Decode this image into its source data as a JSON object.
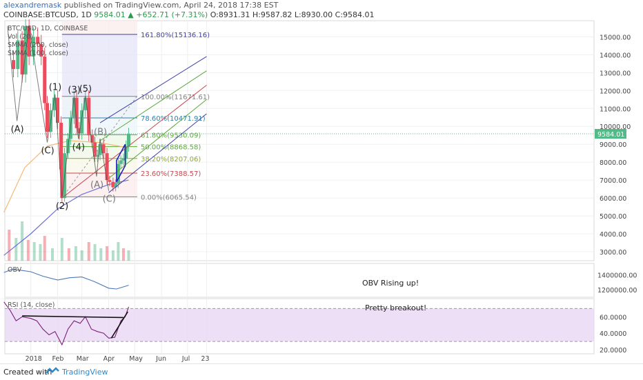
{
  "header": {
    "author": "alexandremask",
    "published": "published on TradingView.com, April 24, 2018 17:38 EST",
    "symbol_line": "COINBASE:BTCUSD, 1D",
    "last": "9584.01",
    "change": "▲ +652.71 (+7.31%)",
    "ohlc": "O:8931.31 H:9587.82 L:8930.00 C:9584.01"
  },
  "legend": {
    "symbol": "BTC/USD, 1D, COINBASE",
    "vol": "Vol (20)",
    "smma200": "SMMA (200, close)",
    "smma100": "SMMA (100, close)"
  },
  "footer": {
    "created_with": "Created with",
    "brand": "TradingView"
  },
  "colors": {
    "up_candle": "#53b987",
    "down_candle": "#eb4d5c",
    "smma200": "#6e6ed8",
    "smma100": "#f5b878",
    "fib_blue": "#3e3ea8",
    "fib_green": "#5aa839",
    "fib_red": "#c8484f",
    "obv": "#4a78b8",
    "rsi": "#7b1f7b",
    "rsi_band": "#e9d8f4"
  },
  "chart_data": [
    {
      "type": "candlestick",
      "title": "BTC/USD, 1D, COINBASE",
      "price_ylim": [
        2500,
        15900
      ],
      "price_ticks": [
        "15000.00",
        "14000.00",
        "13000.00",
        "12000.00",
        "11000.00",
        "10000.00",
        "9000.00",
        "8000.00",
        "7000.00",
        "6000.00",
        "5000.00",
        "4000.00",
        "3000.00"
      ],
      "last_price_label": "9584.01",
      "x_ticks": [
        "2018",
        "Feb",
        "Mar",
        "Apr",
        "May",
        "Jun",
        "Jul",
        "23"
      ],
      "close_series": [
        {
          "date": "2017-12-07",
          "close": 13700
        },
        {
          "date": "2017-12-12",
          "close": 13200
        },
        {
          "date": "2017-12-17",
          "close": 14800
        },
        {
          "date": "2017-12-22",
          "close": 12900
        },
        {
          "date": "2017-12-26",
          "close": 15600
        },
        {
          "date": "2017-12-30",
          "close": 13900
        },
        {
          "date": "2018-01-04",
          "close": 15000
        },
        {
          "date": "2018-01-09",
          "close": 14600
        },
        {
          "date": "2018-01-13",
          "close": 13900
        },
        {
          "date": "2018-01-17",
          "close": 11300
        },
        {
          "date": "2018-01-20",
          "close": 9700
        },
        {
          "date": "2018-01-24",
          "close": 10900
        },
        {
          "date": "2018-01-28",
          "close": 11600
        },
        {
          "date": "2018-02-01",
          "close": 10200
        },
        {
          "date": "2018-02-05",
          "close": 7600
        },
        {
          "date": "2018-02-06",
          "close": 6000
        },
        {
          "date": "2018-02-09",
          "close": 8500
        },
        {
          "date": "2018-02-13",
          "close": 9300
        },
        {
          "date": "2018-02-16",
          "close": 10500
        },
        {
          "date": "2018-02-20",
          "close": 11600
        },
        {
          "date": "2018-02-23",
          "close": 9900
        },
        {
          "date": "2018-02-26",
          "close": 9600
        },
        {
          "date": "2018-03-01",
          "close": 10900
        },
        {
          "date": "2018-03-05",
          "close": 11600
        },
        {
          "date": "2018-03-09",
          "close": 9500
        },
        {
          "date": "2018-03-13",
          "close": 9100
        },
        {
          "date": "2018-03-16",
          "close": 8300
        },
        {
          "date": "2018-03-19",
          "close": 8400
        },
        {
          "date": "2018-03-22",
          "close": 9000
        },
        {
          "date": "2018-03-26",
          "close": 8500
        },
        {
          "date": "2018-03-30",
          "close": 7000
        },
        {
          "date": "2018-04-02",
          "close": 6900
        },
        {
          "date": "2018-04-06",
          "close": 6600
        },
        {
          "date": "2018-04-09",
          "close": 6800
        },
        {
          "date": "2018-04-12",
          "close": 7900
        },
        {
          "date": "2018-04-15",
          "close": 8100
        },
        {
          "date": "2018-04-18",
          "close": 8200
        },
        {
          "date": "2018-04-21",
          "close": 8900
        },
        {
          "date": "2018-04-24",
          "close": 9584
        }
      ],
      "smma200": [
        {
          "date": "2017-12-01",
          "value": 2800
        },
        {
          "date": "2018-01-01",
          "value": 4000
        },
        {
          "date": "2018-02-01",
          "value": 5400
        },
        {
          "date": "2018-03-01",
          "value": 6200
        },
        {
          "date": "2018-04-01",
          "value": 6750
        },
        {
          "date": "2018-04-24",
          "value": 7000
        }
      ],
      "smma100": [
        {
          "date": "2017-12-01",
          "value": 5200
        },
        {
          "date": "2017-12-25",
          "value": 7700
        },
        {
          "date": "2018-01-20",
          "value": 8900
        },
        {
          "date": "2018-02-15",
          "value": 9200
        },
        {
          "date": "2018-03-20",
          "value": 9100
        },
        {
          "date": "2018-04-24",
          "value": 8800
        }
      ],
      "volume": [
        {
          "date": "2017-12-07",
          "v": 0.75
        },
        {
          "date": "2017-12-15",
          "v": 0.55
        },
        {
          "date": "2017-12-22",
          "v": 0.95
        },
        {
          "date": "2017-12-29",
          "v": 0.5
        },
        {
          "date": "2018-01-05",
          "v": 0.45
        },
        {
          "date": "2018-01-12",
          "v": 0.4
        },
        {
          "date": "2018-01-17",
          "v": 0.6
        },
        {
          "date": "2018-01-26",
          "v": 0.3
        },
        {
          "date": "2018-02-06",
          "v": 0.55
        },
        {
          "date": "2018-02-14",
          "v": 0.3
        },
        {
          "date": "2018-02-22",
          "v": 0.35
        },
        {
          "date": "2018-03-01",
          "v": 0.25
        },
        {
          "date": "2018-03-09",
          "v": 0.45
        },
        {
          "date": "2018-03-16",
          "v": 0.4
        },
        {
          "date": "2018-03-23",
          "v": 0.3
        },
        {
          "date": "2018-03-30",
          "v": 0.35
        },
        {
          "date": "2018-04-06",
          "v": 0.25
        },
        {
          "date": "2018-04-12",
          "v": 0.45
        },
        {
          "date": "2018-04-18",
          "v": 0.3
        },
        {
          "date": "2018-04-24",
          "v": 0.25
        }
      ],
      "fib_levels": [
        {
          "ratio": "161.80%",
          "price": 15136.16,
          "label": "161.80%(15136.16)",
          "color": "#3e3ea8"
        },
        {
          "ratio": "100.00%",
          "price": 11671.61,
          "label": "100.00%(11671.61)",
          "color": "#808080"
        },
        {
          "ratio": "78.60%",
          "price": 10471.91,
          "label": "78.60%(10471.91)",
          "color": "#2c7ea8"
        },
        {
          "ratio": "61.80%",
          "price": 9530.09,
          "label": "61.80%(9530.09)",
          "color": "#5aa839"
        },
        {
          "ratio": "50.00%",
          "price": 8868.58,
          "label": "50.00%(8868.58)",
          "color": "#5aa839"
        },
        {
          "ratio": "38.20%",
          "price": 8207.06,
          "label": "38.20%(8207.06)",
          "color": "#8aa82c"
        },
        {
          "ratio": "23.60%",
          "price": 7388.57,
          "label": "23.60%(7388.57)",
          "color": "#c8484f"
        },
        {
          "ratio": "0.00%",
          "price": 6065.54,
          "label": "0.00%(6065.54)",
          "color": "#808080"
        }
      ],
      "wave_labels": [
        {
          "text": "(A)",
          "date": "2017-12-16",
          "price": 10300
        },
        {
          "text": "(C)",
          "date": "2018-01-20",
          "price": 9100
        },
        {
          "text": "(1)",
          "date": "2018-01-29",
          "price": 11800
        },
        {
          "text": "(2)",
          "date": "2018-02-06",
          "price": 6000
        },
        {
          "text": "(3)",
          "date": "2018-02-20",
          "price": 11650
        },
        {
          "text": "(4)",
          "date": "2018-02-25",
          "price": 9300
        },
        {
          "text": "(5)",
          "date": "2018-03-05",
          "price": 11700
        },
        {
          "text": "(B)",
          "date": "2018-03-22",
          "price": 9300
        },
        {
          "text": "(A)",
          "date": "2018-03-18",
          "price": 7200
        },
        {
          "text": "(C)",
          "date": "2018-04-01",
          "price": 6400
        }
      ]
    },
    {
      "type": "line",
      "title": "OBV",
      "ylim": [
        1100000,
        1550000
      ],
      "ticks": [
        "1400000.00",
        "1200000.00"
      ],
      "annotation": "OBV Rising up!",
      "values": [
        {
          "date": "2017-12-01",
          "v": 1430000
        },
        {
          "date": "2017-12-10",
          "v": 1470000
        },
        {
          "date": "2017-12-20",
          "v": 1460000
        },
        {
          "date": "2018-01-01",
          "v": 1440000
        },
        {
          "date": "2018-01-15",
          "v": 1380000
        },
        {
          "date": "2018-02-01",
          "v": 1330000
        },
        {
          "date": "2018-02-15",
          "v": 1360000
        },
        {
          "date": "2018-03-01",
          "v": 1370000
        },
        {
          "date": "2018-03-15",
          "v": 1310000
        },
        {
          "date": "2018-04-01",
          "v": 1220000
        },
        {
          "date": "2018-04-10",
          "v": 1210000
        },
        {
          "date": "2018-04-24",
          "v": 1260000
        }
      ]
    },
    {
      "type": "line",
      "title": "RSI (14, close)",
      "ylim": [
        15,
        82
      ],
      "ticks": [
        "60.0000",
        "40.0000",
        "20.0000"
      ],
      "band": [
        30,
        70
      ],
      "annotation": "Pretty breakout!",
      "values": [
        {
          "date": "2017-12-01",
          "v": 78
        },
        {
          "date": "2017-12-08",
          "v": 68
        },
        {
          "date": "2017-12-15",
          "v": 55
        },
        {
          "date": "2017-12-22",
          "v": 60
        },
        {
          "date": "2018-01-01",
          "v": 58
        },
        {
          "date": "2018-01-08",
          "v": 55
        },
        {
          "date": "2018-01-15",
          "v": 45
        },
        {
          "date": "2018-01-22",
          "v": 38
        },
        {
          "date": "2018-01-29",
          "v": 42
        },
        {
          "date": "2018-02-06",
          "v": 26
        },
        {
          "date": "2018-02-13",
          "v": 45
        },
        {
          "date": "2018-02-20",
          "v": 55
        },
        {
          "date": "2018-02-27",
          "v": 52
        },
        {
          "date": "2018-03-05",
          "v": 60
        },
        {
          "date": "2018-03-12",
          "v": 45
        },
        {
          "date": "2018-03-19",
          "v": 42
        },
        {
          "date": "2018-03-26",
          "v": 40
        },
        {
          "date": "2018-04-01",
          "v": 34
        },
        {
          "date": "2018-04-08",
          "v": 35
        },
        {
          "date": "2018-04-15",
          "v": 55
        },
        {
          "date": "2018-04-20",
          "v": 60
        },
        {
          "date": "2018-04-24",
          "v": 72
        }
      ]
    }
  ]
}
